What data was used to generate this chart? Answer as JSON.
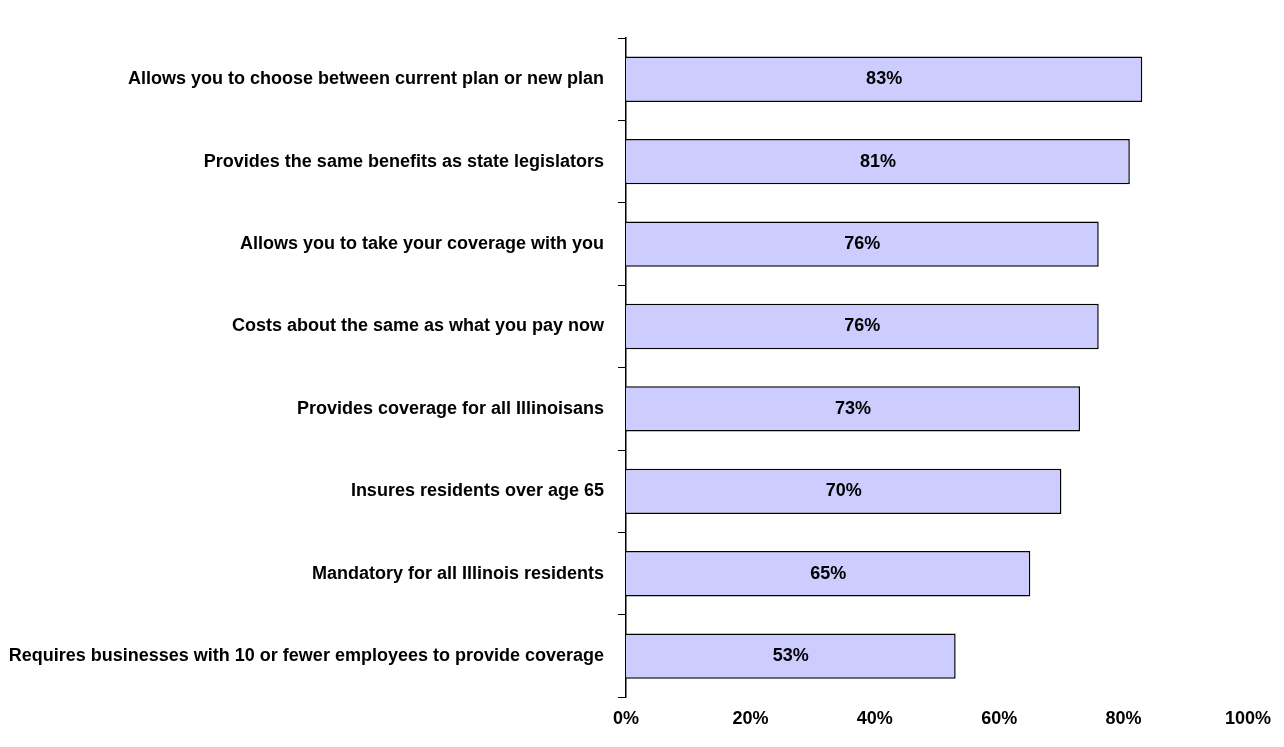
{
  "chart_data": {
    "type": "bar",
    "orientation": "horizontal",
    "categories": [
      "Allows you to choose between current plan or new plan",
      "Provides the same benefits as state legislators",
      "Allows you to take your coverage with you",
      "Costs about the same as what you pay now",
      "Provides coverage for all Illinoisans",
      "Insures residents over age 65",
      "Mandatory for all Illinois residents",
      "Requires businesses with 10 or fewer employees to provide coverage"
    ],
    "values": [
      83,
      81,
      76,
      76,
      73,
      70,
      65,
      53
    ],
    "value_labels": [
      "83%",
      "81%",
      "76%",
      "76%",
      "73%",
      "70%",
      "65%",
      "53%"
    ],
    "color": "#ccccff",
    "xlim": [
      0,
      100
    ],
    "xticks": [
      {
        "value": 0,
        "label": "0%"
      },
      {
        "value": 20,
        "label": "20%"
      },
      {
        "value": 40,
        "label": "40%"
      },
      {
        "value": 60,
        "label": "60%"
      },
      {
        "value": 80,
        "label": "80%"
      },
      {
        "value": 100,
        "label": "100%"
      }
    ],
    "grid": false,
    "legend": false
  }
}
